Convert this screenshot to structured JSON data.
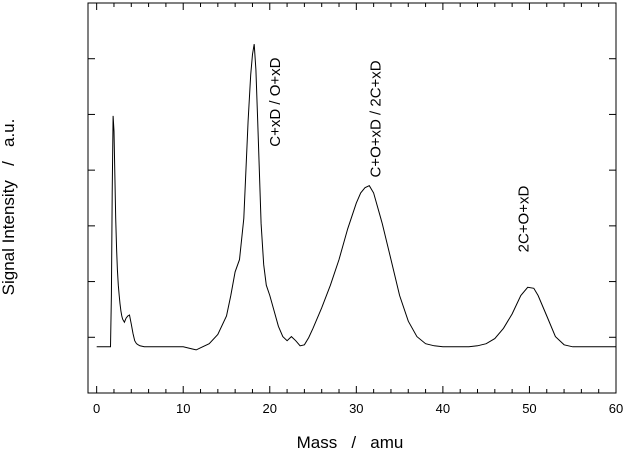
{
  "chart_data": {
    "type": "line",
    "title": "",
    "xlabel": "Mass   /   amu",
    "ylabel": "Signal Intensity   /   a.u.",
    "xlim": [
      -1,
      60
    ],
    "ylim": [
      -0.45,
      3.35
    ],
    "x_ticks": [
      0,
      10,
      20,
      30,
      40,
      50,
      60
    ],
    "x_minor_step": 2,
    "y_ticks_count": 6,
    "grid": false,
    "legend": "none",
    "line_color": "#000000",
    "series": [
      {
        "name": "",
        "x": [
          0,
          1.6,
          1.7,
          1.8,
          1.9,
          2.0,
          2.1,
          2.2,
          2.3,
          2.4,
          2.5,
          2.6,
          2.7,
          2.8,
          2.9,
          3.0,
          3.2,
          3.4,
          3.6,
          3.8,
          4.0,
          4.2,
          4.4,
          4.6,
          4.8,
          5.0,
          5.5,
          6,
          7,
          8,
          9,
          10,
          11,
          11.5,
          12,
          13,
          14,
          15,
          15.5,
          16,
          16.5,
          17,
          17.5,
          17.8,
          18,
          18.2,
          18.4,
          18.6,
          18.8,
          19,
          19.3,
          19.6,
          20,
          20.5,
          21,
          21.5,
          22,
          22.5,
          23,
          23.5,
          24,
          24.5,
          25,
          26,
          27,
          28,
          29,
          30,
          30.5,
          31,
          31.5,
          32,
          33,
          34,
          35,
          36,
          37,
          38,
          39,
          40,
          41,
          42,
          43,
          44,
          45,
          46,
          47,
          48,
          49,
          49.8,
          50.5,
          51,
          52,
          53,
          54,
          55,
          56,
          57,
          58,
          59,
          60
        ],
        "y": [
          0,
          0,
          0.5,
          1.5,
          2.25,
          2.1,
          1.7,
          1.25,
          0.95,
          0.75,
          0.6,
          0.5,
          0.42,
          0.35,
          0.3,
          0.27,
          0.24,
          0.28,
          0.3,
          0.31,
          0.22,
          0.13,
          0.06,
          0.03,
          0.02,
          0.01,
          0,
          0,
          0,
          0,
          0,
          0,
          -0.02,
          -0.03,
          -0.01,
          0.03,
          0.12,
          0.3,
          0.5,
          0.73,
          0.85,
          1.25,
          2.2,
          2.65,
          2.85,
          2.95,
          2.7,
          2.2,
          1.7,
          1.2,
          0.8,
          0.6,
          0.5,
          0.35,
          0.2,
          0.1,
          0.06,
          0.1,
          0.06,
          0.01,
          0.02,
          0.09,
          0.18,
          0.38,
          0.6,
          0.85,
          1.15,
          1.4,
          1.5,
          1.55,
          1.57,
          1.5,
          1.2,
          0.85,
          0.5,
          0.25,
          0.1,
          0.03,
          0.01,
          0,
          0,
          0,
          0,
          0.01,
          0.03,
          0.08,
          0.18,
          0.32,
          0.5,
          0.58,
          0.57,
          0.5,
          0.3,
          0.1,
          0.02,
          0,
          0,
          0,
          0,
          0,
          0
        ]
      }
    ],
    "annotations": [
      {
        "text": "C+xD / O+xD",
        "x": 21.2,
        "y": 1.95
      },
      {
        "text": "C+O+xD / 2C+xD",
        "x": 32.8,
        "y": 1.65
      },
      {
        "text": "2C+O+xD",
        "x": 49.9,
        "y": 0.92
      }
    ]
  }
}
